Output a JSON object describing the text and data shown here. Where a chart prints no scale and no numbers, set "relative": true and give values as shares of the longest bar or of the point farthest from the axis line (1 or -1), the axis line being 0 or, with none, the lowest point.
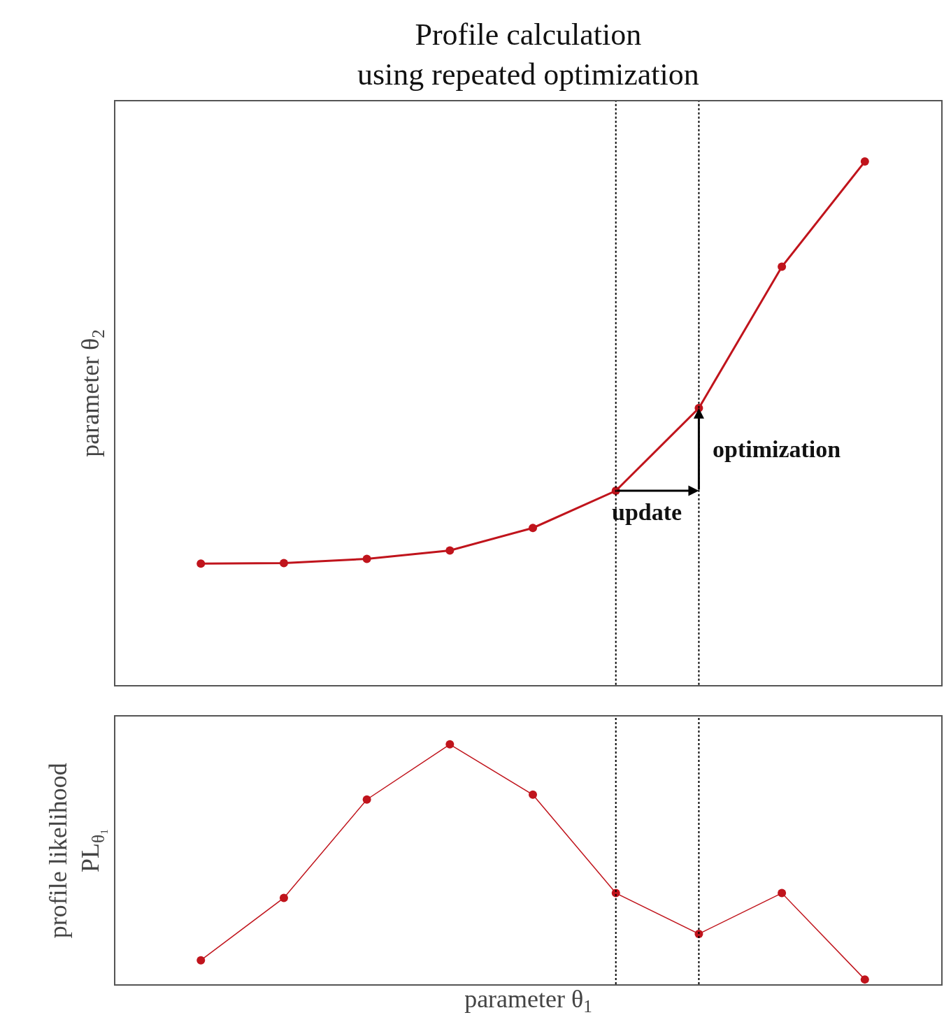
{
  "chart_data": [
    {
      "type": "line",
      "title": "Profile calculation\nusing repeated optimization",
      "ylabel": "parameter θ$_{2}$",
      "relative": true,
      "categories": [
        null,
        null,
        null,
        null,
        null,
        null,
        null,
        null,
        null
      ],
      "series": [
        {
          "color": "#c0141c",
          "values": [
            0.232,
            0.233,
            0.241,
            0.257,
            0.3,
            0.371,
            0.529,
            0.799,
            1
          ]
        }
      ],
      "marker": "circle",
      "line_style": "solid",
      "annotations": [
        "update",
        "optimization"
      ]
    },
    {
      "type": "line",
      "xlabel": "parameter θ$_{1}$",
      "ylabel": "profile likelihood\nPL$_{θ₁}$",
      "relative": true,
      "categories": [
        null,
        null,
        null,
        null,
        null,
        null,
        null,
        null,
        null
      ],
      "series": [
        {
          "color": "#c0141c",
          "values": [
            0.1,
            0.36,
            0.77,
            1,
            0.79,
            0.38,
            0.21,
            0.38,
            0.02
          ]
        }
      ],
      "marker": "circle",
      "line_style": "solid"
    }
  ]
}
